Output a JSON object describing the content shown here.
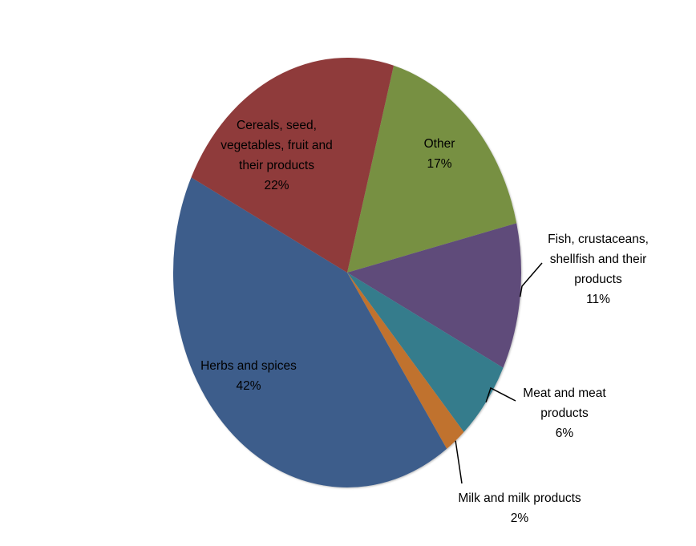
{
  "chart_data": {
    "type": "pie",
    "categories": [
      "Other",
      "Fish, crustaceans, shellfish and their products",
      "Meat and meat products",
      "Milk  and milk products",
      "Herbs and spices",
      "Cereals, seed, vegetables, fruit and their products"
    ],
    "values": [
      17,
      11,
      6,
      2,
      42,
      22
    ],
    "labels": [
      "17%",
      "11%",
      "6%",
      "2%",
      "42%",
      "22%"
    ],
    "colors": [
      "#779043",
      "#5e4b7a",
      "#347b8c",
      "#c0722f",
      "#3d5d8b",
      "#8f3b3b"
    ],
    "start_angle_deg": 15.5,
    "direction": "clockwise",
    "title": "",
    "legend": "none"
  }
}
